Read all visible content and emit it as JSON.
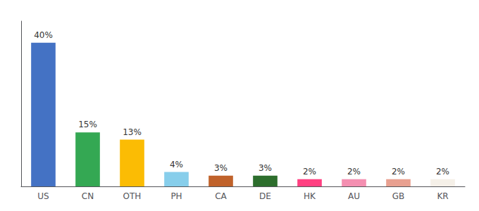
{
  "chart_data": {
    "type": "bar",
    "categories": [
      "US",
      "CN",
      "OTH",
      "PH",
      "CA",
      "DE",
      "HK",
      "AU",
      "GB",
      "KR"
    ],
    "values": [
      40,
      15,
      13,
      4,
      3,
      3,
      2,
      2,
      2,
      2
    ],
    "value_labels": [
      "40%",
      "15%",
      "13%",
      "4%",
      "3%",
      "3%",
      "2%",
      "2%",
      "2%",
      "2%"
    ],
    "colors": [
      "#4472c4",
      "#34a853",
      "#fbbc04",
      "#87ceeb",
      "#c0622b",
      "#2d6e2d",
      "#ff4081",
      "#f48fb1",
      "#e8a090",
      "#f5f0e8"
    ],
    "ylim": [
      0,
      46
    ],
    "grid": false,
    "data_labels": true,
    "tick_labels": "x"
  }
}
